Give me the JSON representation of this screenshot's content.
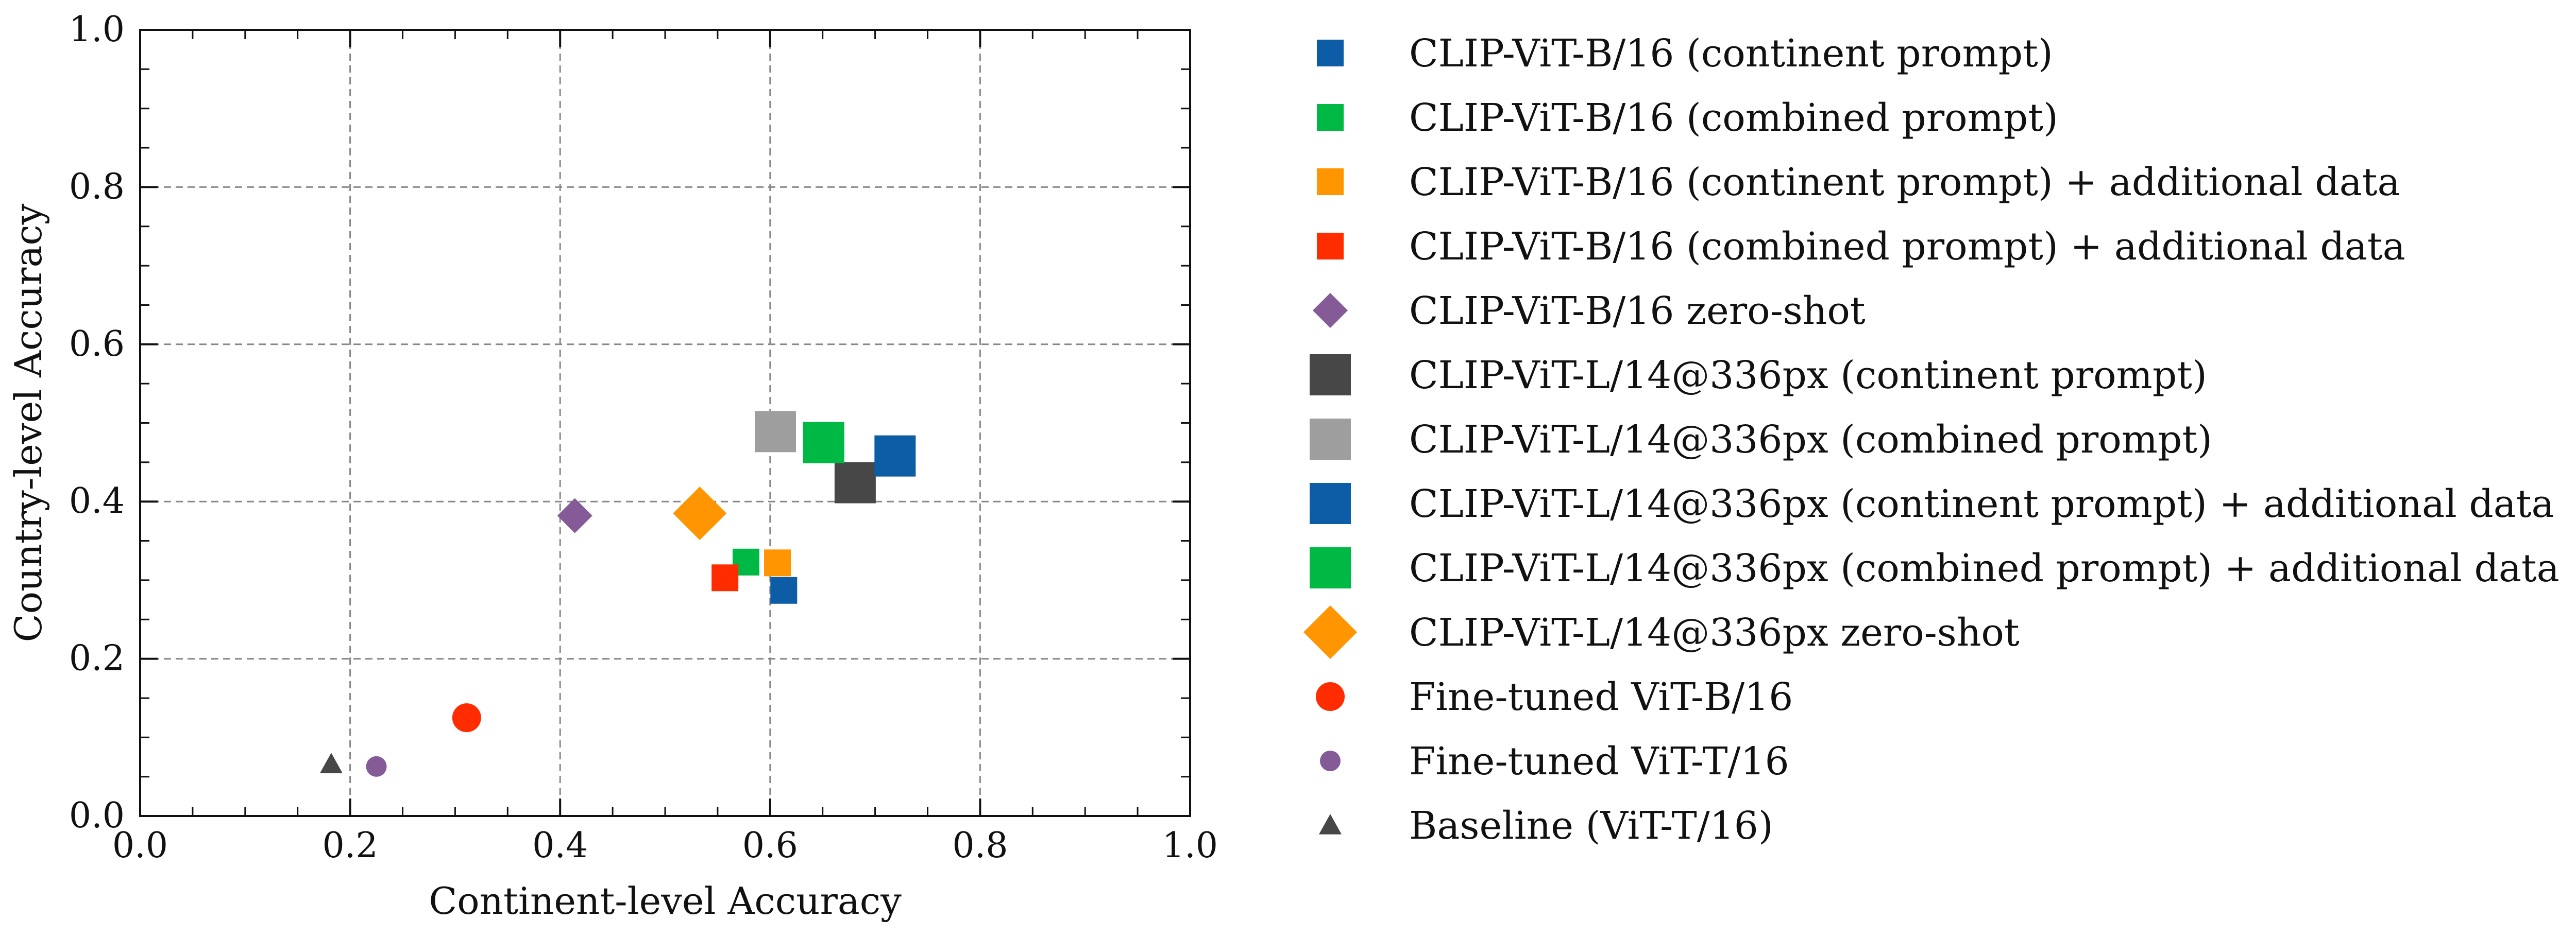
{
  "chart_data": {
    "type": "scatter",
    "title": "",
    "xlabel": "Continent-level Accuracy",
    "ylabel": "Country-level Accuracy",
    "xlim": [
      0.0,
      1.0
    ],
    "ylim": [
      0.0,
      1.0
    ],
    "xticks": [
      "0.0",
      "0.2",
      "0.4",
      "0.6",
      "0.8",
      "1.0"
    ],
    "yticks": [
      "0.0",
      "0.2",
      "0.4",
      "0.6",
      "0.8",
      "1.0"
    ],
    "grid": true,
    "grid_style": "dashed",
    "legend_position": "outside-right",
    "series": [
      {
        "name": "CLIP-ViT-B/16 (continent prompt)",
        "marker": "square",
        "size": "medium",
        "color": "#0c5da5",
        "x": 0.613,
        "y": 0.287
      },
      {
        "name": "CLIP-ViT-B/16 (combined prompt)",
        "marker": "square",
        "size": "medium",
        "color": "#00b945",
        "x": 0.577,
        "y": 0.323
      },
      {
        "name": "CLIP-ViT-B/16 (continent prompt) + additional data",
        "marker": "square",
        "size": "medium",
        "color": "#ff9500",
        "x": 0.607,
        "y": 0.322
      },
      {
        "name": "CLIP-ViT-B/16 (combined prompt) + additional data",
        "marker": "square",
        "size": "medium",
        "color": "#ff2c00",
        "x": 0.557,
        "y": 0.303
      },
      {
        "name": "CLIP-ViT-B/16 zero-shot",
        "marker": "diamond",
        "size": "medium",
        "color": "#845b97",
        "x": 0.414,
        "y": 0.382
      },
      {
        "name": "CLIP-ViT-L/14@336px (continent prompt)",
        "marker": "square",
        "size": "large",
        "color": "#474747",
        "x": 0.681,
        "y": 0.424
      },
      {
        "name": "CLIP-ViT-L/14@336px (combined prompt)",
        "marker": "square",
        "size": "large",
        "color": "#9e9e9e",
        "x": 0.605,
        "y": 0.489
      },
      {
        "name": "CLIP-ViT-L/14@336px (continent prompt) + additional data",
        "marker": "square",
        "size": "large",
        "color": "#0c5da5",
        "x": 0.719,
        "y": 0.458
      },
      {
        "name": "CLIP-ViT-L/14@336px (combined prompt) + additional data",
        "marker": "square",
        "size": "large",
        "color": "#00b945",
        "x": 0.651,
        "y": 0.475
      },
      {
        "name": "CLIP-ViT-L/14@336px zero-shot",
        "marker": "diamond",
        "size": "large",
        "color": "#ff9500",
        "x": 0.533,
        "y": 0.385
      },
      {
        "name": "Fine-tuned ViT-B/16",
        "marker": "circle",
        "size": "medium",
        "color": "#ff2c00",
        "x": 0.311,
        "y": 0.125
      },
      {
        "name": "Fine-tuned ViT-T/16",
        "marker": "circle",
        "size": "small",
        "color": "#845b97",
        "x": 0.225,
        "y": 0.063
      },
      {
        "name": "Baseline (ViT-T/16)",
        "marker": "triangle",
        "size": "small",
        "color": "#474747",
        "x": 0.182,
        "y": 0.066
      }
    ]
  }
}
